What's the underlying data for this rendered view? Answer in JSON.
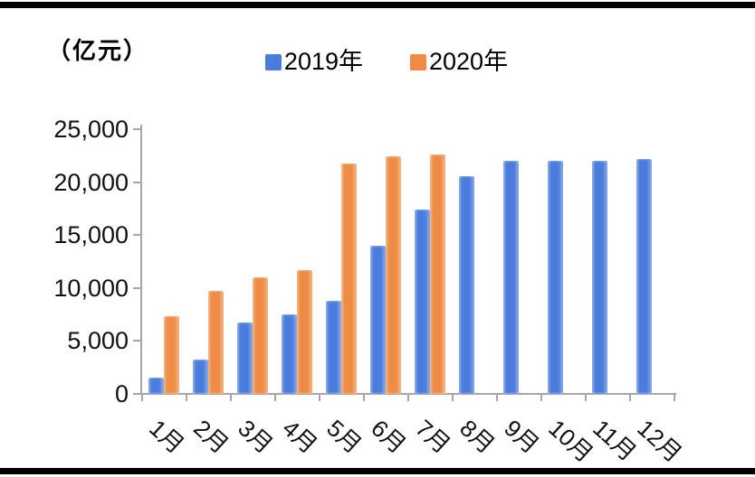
{
  "page": {
    "unit_label": "（亿元）"
  },
  "legend": {
    "items": [
      {
        "label": "2019年",
        "color": "#4a7cde"
      },
      {
        "label": "2020年",
        "color": "#ee8c45"
      }
    ]
  },
  "chart_data": {
    "type": "bar",
    "title": "",
    "unit": "（亿元）",
    "categories": [
      "1月",
      "2月",
      "3月",
      "4月",
      "5月",
      "6月",
      "7月",
      "8月",
      "9月",
      "10月",
      "11月",
      "12月"
    ],
    "series": [
      {
        "name": "2019年",
        "color": "#4a7cde",
        "values": [
          1500,
          3200,
          6700,
          7500,
          8800,
          14000,
          17400,
          20600,
          22000,
          22000,
          22000,
          22200
        ]
      },
      {
        "name": "2020年",
        "color": "#ee8c45",
        "values": [
          7300,
          9700,
          11000,
          11700,
          21800,
          22400,
          22600,
          null,
          null,
          null,
          null,
          null
        ]
      }
    ],
    "xlabel": "",
    "ylabel": "（亿元）",
    "ylim": [
      0,
      25000
    ],
    "ytick_interval": 5000,
    "ytick_labels": [
      "0",
      "5,000",
      "10,000",
      "15,000",
      "20,000",
      "25,000"
    ],
    "grid": false,
    "legend_position": "top",
    "axis_color": "#a6a6a6"
  }
}
